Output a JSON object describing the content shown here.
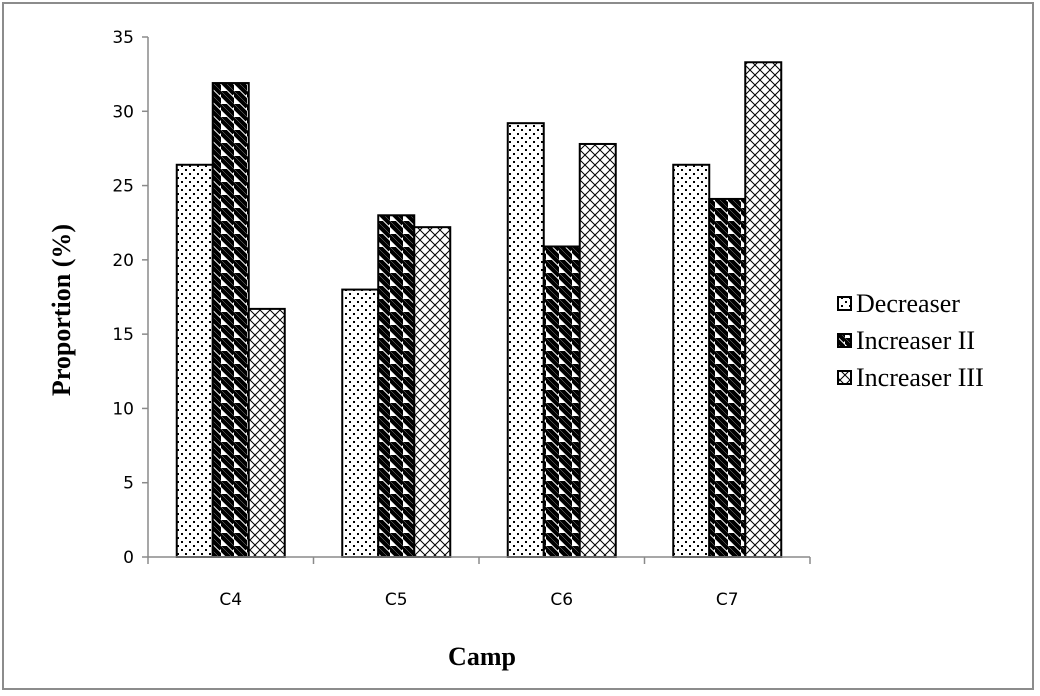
{
  "chart_data": {
    "type": "bar",
    "title": "",
    "xlabel": "Camp",
    "ylabel": "Proportion (%)",
    "categories": [
      "C4",
      "C5",
      "C6",
      "C7"
    ],
    "series": [
      {
        "name": "Decreaser",
        "values": [
          26.4,
          18.0,
          29.2,
          26.4
        ],
        "pattern": "dots"
      },
      {
        "name": "Increaser II",
        "values": [
          31.9,
          23.0,
          20.9,
          24.1
        ],
        "pattern": "diagonal-stripes"
      },
      {
        "name": "Increaser III",
        "values": [
          16.7,
          22.2,
          27.8,
          33.3
        ],
        "pattern": "crosshatch"
      }
    ],
    "ylim": [
      0,
      35
    ],
    "yticks": [
      0,
      5,
      10,
      15,
      20,
      25,
      30,
      35
    ],
    "grid": false,
    "legend_position": "right"
  }
}
